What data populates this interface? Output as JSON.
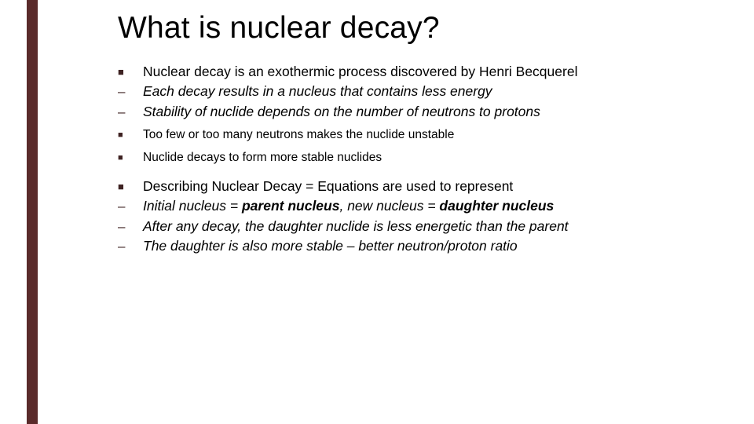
{
  "accent_color": "#5a2b2b",
  "title": "What is nuclear decay?",
  "bullets": [
    {
      "marker": "■",
      "style": "square",
      "cls": "",
      "text": "Nuclear decay is an exothermic process discovered by Henri Becquerel"
    },
    {
      "marker": "–",
      "style": "dash",
      "cls": "italic",
      "text": "Each decay results in a nucleus that contains less energy"
    },
    {
      "marker": "–",
      "style": "dash",
      "cls": "italic",
      "text": "Stability of nuclide depends on the number of neutrons to protons"
    },
    {
      "gap": "small"
    },
    {
      "marker": "■",
      "style": "square",
      "cls": "small",
      "text": "Too few or too many neutrons makes the nuclide unstable"
    },
    {
      "gap": "small"
    },
    {
      "marker": "■",
      "style": "square",
      "cls": "small",
      "text": "Nuclide decays to form more stable nuclides"
    },
    {
      "gap": "med"
    },
    {
      "marker": "■",
      "style": "square",
      "cls": "",
      "text": "Describing Nuclear Decay = Equations are used to represent"
    },
    {
      "marker": "–",
      "style": "dash",
      "cls": "italic",
      "html": "Initial nucleus = <b>parent nucleus</b>, new nucleus = <b>daughter nucleus</b>"
    },
    {
      "marker": "–",
      "style": "dash",
      "cls": "italic",
      "text": "After any decay, the daughter nuclide is less energetic than the parent"
    },
    {
      "marker": "–",
      "style": "dash",
      "cls": "italic",
      "text": "The daughter is also more stable – better neutron/proton ratio"
    }
  ]
}
